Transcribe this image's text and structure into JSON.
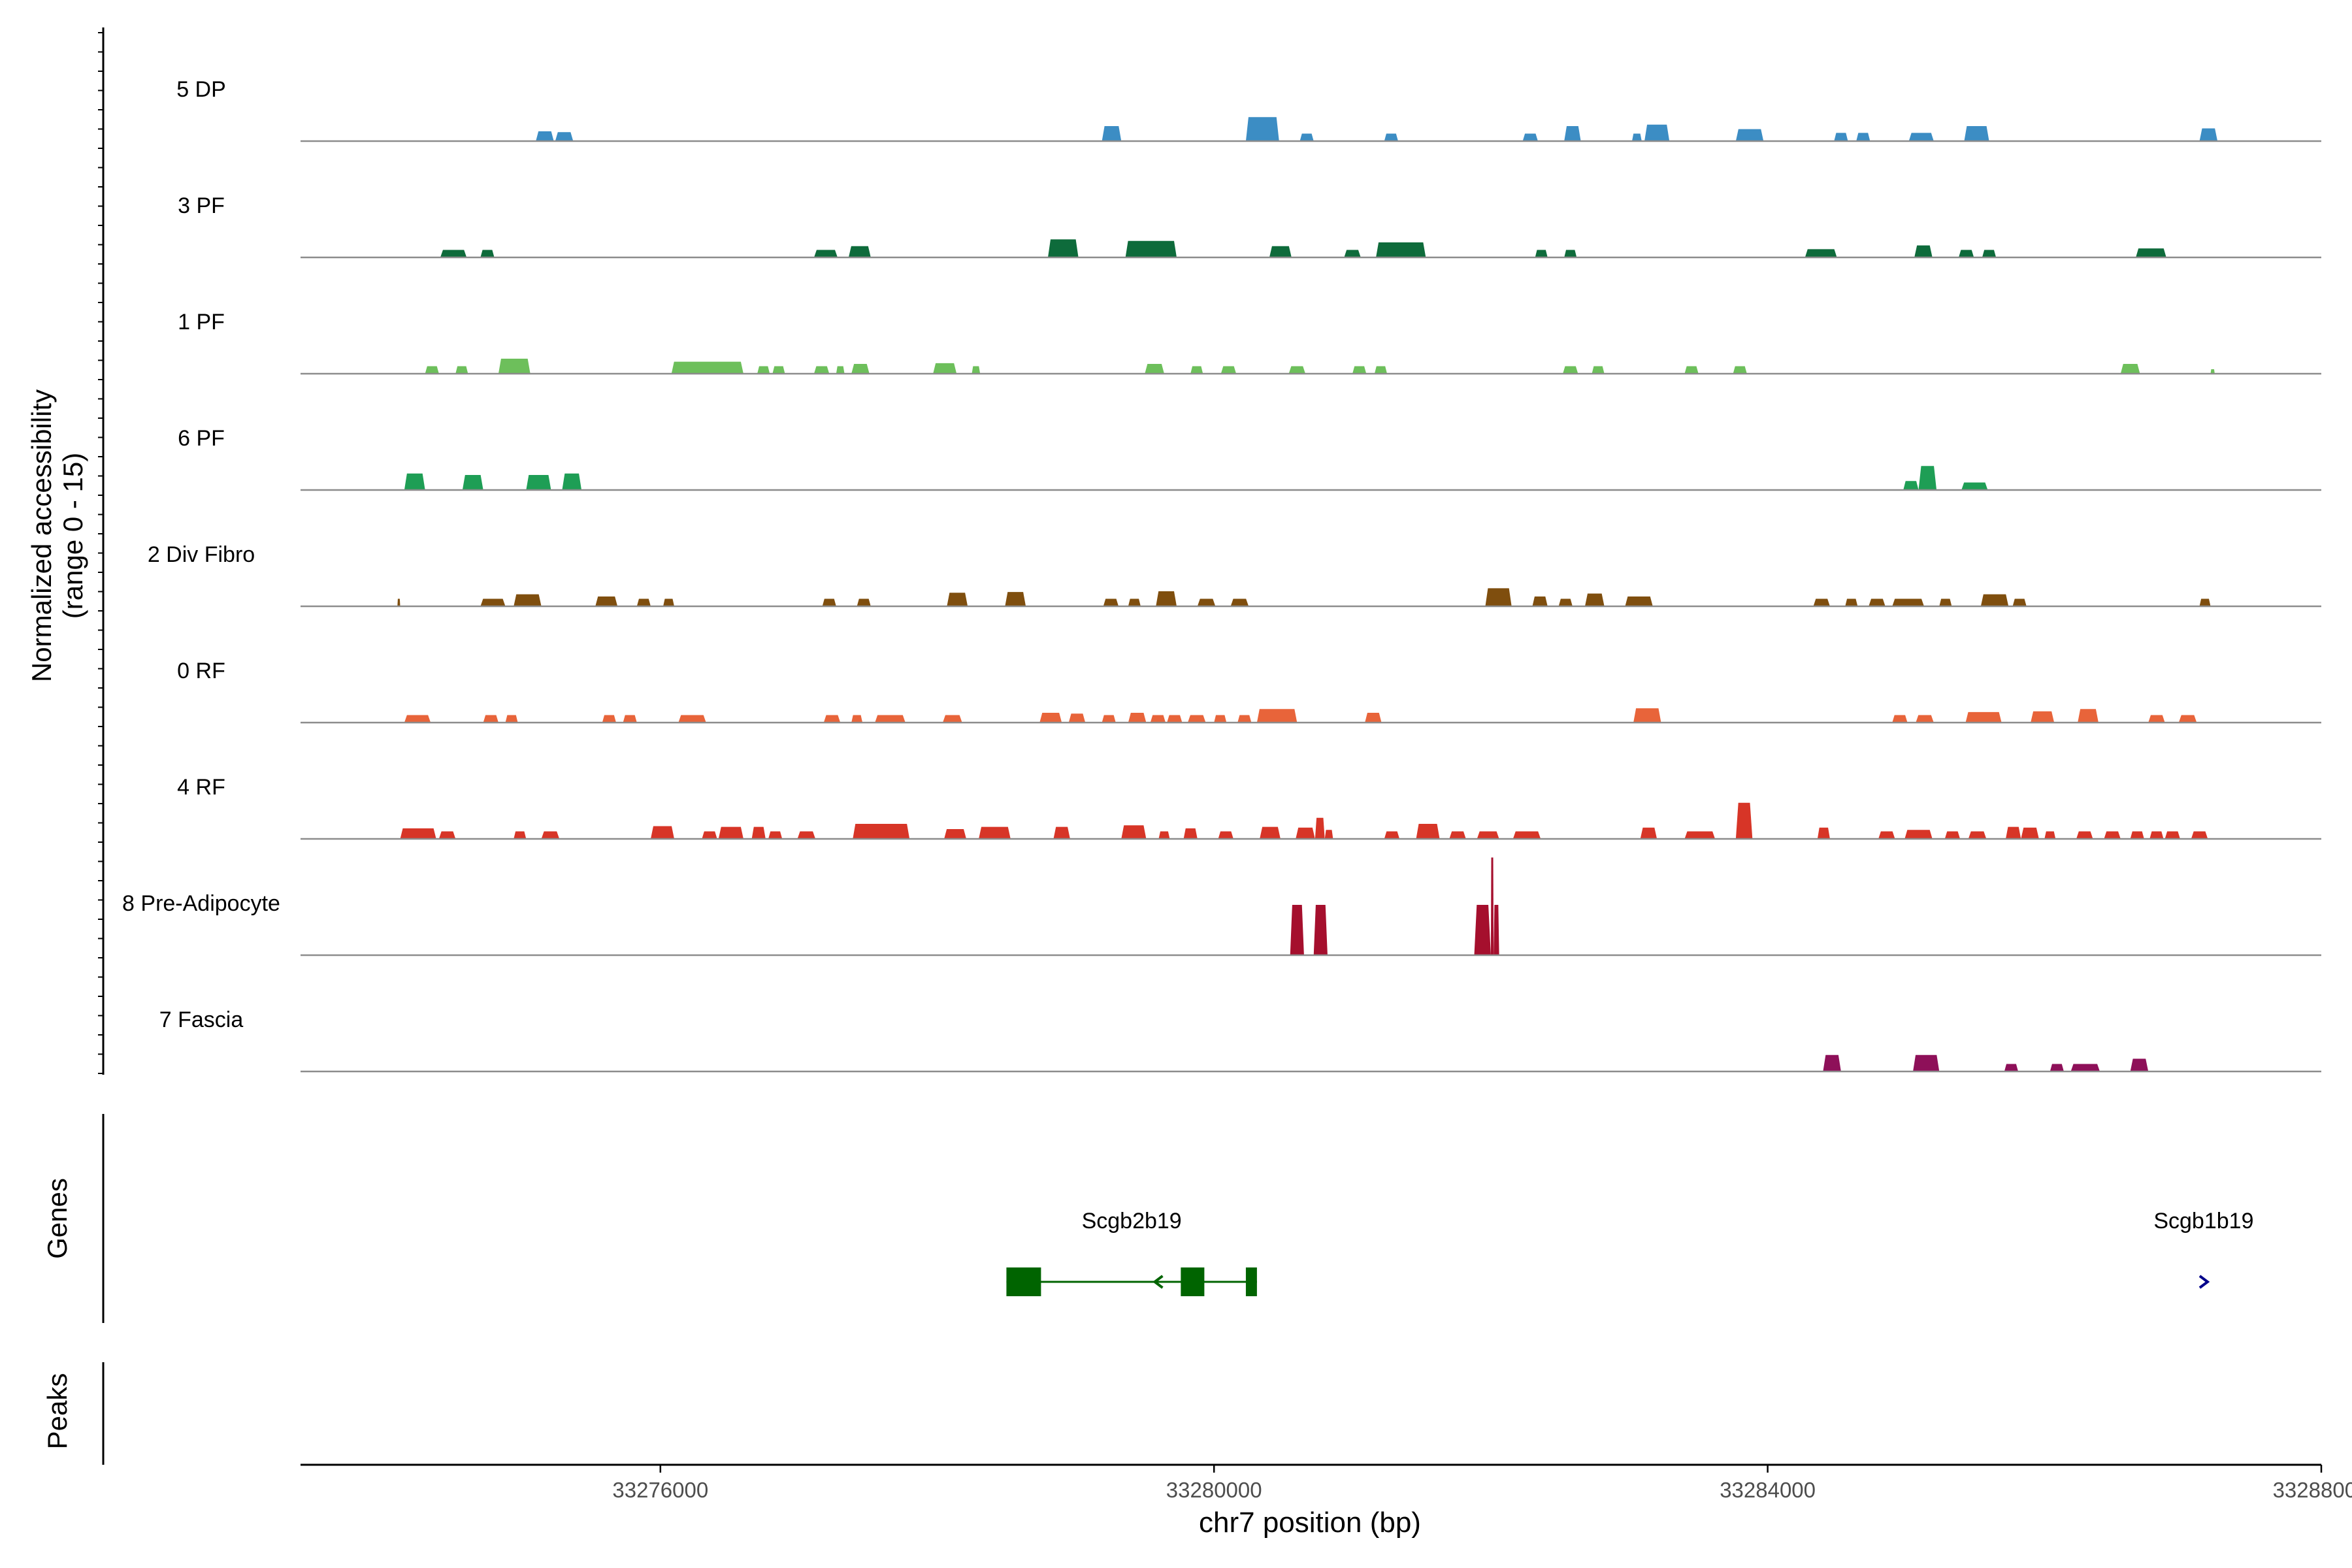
{
  "chart_data": {
    "type": "area",
    "title": "",
    "ylabel": "Normalized accessibility",
    "ylabel_range": "(range 0 - 15)",
    "xlabel": "chr7 position (bp)",
    "xlim": [
      33273400,
      33288000
    ],
    "ylim": [
      0,
      15
    ],
    "xticks": [
      33276000,
      33280000,
      33284000,
      33288000
    ],
    "xtick_labels": [
      "33276000",
      "33280000",
      "33284000",
      "33288000"
    ],
    "grid": false,
    "tracks": [
      {
        "name": "5 DP",
        "color": "#3C8DC4",
        "peaks": [
          [
            33275100,
            33275230,
            1.3
          ],
          [
            33275240,
            33275370,
            1.2
          ],
          [
            33279190,
            33279330,
            2.0
          ],
          [
            33280230,
            33280470,
            3.2
          ],
          [
            33280620,
            33280720,
            1.0
          ],
          [
            33281230,
            33281330,
            1.0
          ],
          [
            33282230,
            33282340,
            1.0
          ],
          [
            33282530,
            33282650,
            2.0
          ],
          [
            33283020,
            33283090,
            1.0
          ],
          [
            33283110,
            33283290,
            2.2
          ],
          [
            33283770,
            33283970,
            1.6
          ],
          [
            33284480,
            33284580,
            1.1
          ],
          [
            33284640,
            33284740,
            1.1
          ],
          [
            33285020,
            33285200,
            1.1
          ],
          [
            33285420,
            33285600,
            2.0
          ],
          [
            33287120,
            33287250,
            1.7
          ]
        ]
      },
      {
        "name": "3 PF",
        "color": "#0E6B3B",
        "peaks": [
          [
            33274410,
            33274600,
            1.0
          ],
          [
            33274700,
            33274800,
            1.0
          ],
          [
            33277110,
            33277280,
            1.0
          ],
          [
            33277360,
            33277520,
            1.5
          ],
          [
            33278800,
            33279020,
            2.4
          ],
          [
            33279360,
            33279730,
            2.2
          ],
          [
            33280400,
            33280560,
            1.5
          ],
          [
            33280940,
            33281060,
            1.0
          ],
          [
            33281170,
            33281530,
            2.0
          ],
          [
            33282320,
            33282410,
            1.0
          ],
          [
            33282530,
            33282620,
            1.0
          ],
          [
            33284270,
            33284500,
            1.1
          ],
          [
            33285060,
            33285190,
            1.6
          ],
          [
            33285380,
            33285490,
            1.0
          ],
          [
            33285550,
            33285650,
            1.0
          ],
          [
            33286660,
            33286880,
            1.2
          ]
        ]
      },
      {
        "name": "1 PF",
        "color": "#6DBF5B",
        "peaks": [
          [
            33274300,
            33274400,
            1.0
          ],
          [
            33274520,
            33274610,
            1.0
          ],
          [
            33274830,
            33275060,
            2.0
          ],
          [
            33276080,
            33276600,
            1.6
          ],
          [
            33276700,
            33276790,
            1.0
          ],
          [
            33276810,
            33276900,
            1.0
          ],
          [
            33277110,
            33277220,
            1.0
          ],
          [
            33277270,
            33277330,
            1.0
          ],
          [
            33277380,
            33277510,
            1.3
          ],
          [
            33277970,
            33278140,
            1.4
          ],
          [
            33278250,
            33278310,
            1.0
          ],
          [
            33279500,
            33279640,
            1.3
          ],
          [
            33279830,
            33279920,
            1.0
          ],
          [
            33280050,
            33280160,
            1.0
          ],
          [
            33280540,
            33280660,
            1.0
          ],
          [
            33281000,
            33281100,
            1.0
          ],
          [
            33281160,
            33281250,
            1.0
          ],
          [
            33282520,
            33282630,
            1.0
          ],
          [
            33282730,
            33282820,
            1.0
          ],
          [
            33283400,
            33283500,
            1.0
          ],
          [
            33283750,
            33283850,
            1.0
          ],
          [
            33286550,
            33286690,
            1.3
          ],
          [
            33287200,
            33287230,
            0.6
          ]
        ]
      },
      {
        "name": "6 PF",
        "color": "#1E9E55",
        "peaks": [
          [
            33274150,
            33274300,
            2.2
          ],
          [
            33274570,
            33274720,
            2.0
          ],
          [
            33275030,
            33275210,
            2.0
          ],
          [
            33275290,
            33275430,
            2.2
          ],
          [
            33284980,
            33285090,
            1.2
          ],
          [
            33285090,
            33285220,
            3.2
          ],
          [
            33285400,
            33285590,
            1.0
          ]
        ]
      },
      {
        "name": "2 Div Fibro",
        "color": "#7F4E0E",
        "peaks": [
          [
            33274100,
            33274120,
            1.0
          ],
          [
            33274700,
            33274880,
            1.0
          ],
          [
            33274940,
            33275140,
            1.6
          ],
          [
            33275530,
            33275690,
            1.3
          ],
          [
            33275830,
            33275930,
            1.0
          ],
          [
            33276020,
            33276100,
            1.0
          ],
          [
            33277170,
            33277270,
            1.0
          ],
          [
            33277420,
            33277520,
            1.0
          ],
          [
            33278070,
            33278220,
            1.8
          ],
          [
            33278490,
            33278640,
            1.9
          ],
          [
            33279200,
            33279310,
            1.0
          ],
          [
            33279380,
            33279470,
            1.0
          ],
          [
            33279580,
            33279730,
            2.0
          ],
          [
            33279880,
            33280010,
            1.0
          ],
          [
            33280120,
            33280250,
            1.0
          ],
          [
            33281960,
            33282150,
            2.4
          ],
          [
            33282300,
            33282410,
            1.3
          ],
          [
            33282490,
            33282590,
            1.0
          ],
          [
            33282680,
            33282820,
            1.7
          ],
          [
            33282970,
            33283170,
            1.3
          ],
          [
            33284330,
            33284450,
            1.0
          ],
          [
            33284560,
            33284650,
            1.0
          ],
          [
            33284730,
            33284850,
            1.0
          ],
          [
            33284900,
            33285130,
            1.0
          ],
          [
            33285240,
            33285330,
            1.0
          ],
          [
            33285540,
            33285740,
            1.6
          ],
          [
            33285770,
            33285870,
            1.0
          ],
          [
            33287120,
            33287200,
            1.0
          ]
        ]
      },
      {
        "name": "0 RF",
        "color": "#E8643A",
        "peaks": [
          [
            33274150,
            33274340,
            1.0
          ],
          [
            33274720,
            33274830,
            1.0
          ],
          [
            33274880,
            33274970,
            1.0
          ],
          [
            33275580,
            33275680,
            1.0
          ],
          [
            33275730,
            33275830,
            1.0
          ],
          [
            33276130,
            33276330,
            1.0
          ],
          [
            33277180,
            33277300,
            1.0
          ],
          [
            33277380,
            33277460,
            1.0
          ],
          [
            33277550,
            33277770,
            1.0
          ],
          [
            33278040,
            33278180,
            1.0
          ],
          [
            33278740,
            33278900,
            1.3
          ],
          [
            33278950,
            33279070,
            1.2
          ],
          [
            33279190,
            33279290,
            1.0
          ],
          [
            33279380,
            33279510,
            1.3
          ],
          [
            33279540,
            33279650,
            1.0
          ],
          [
            33279660,
            33279770,
            1.0
          ],
          [
            33279810,
            33279940,
            1.0
          ],
          [
            33280000,
            33280090,
            1.0
          ],
          [
            33280170,
            33280270,
            1.0
          ],
          [
            33280310,
            33280600,
            1.8
          ],
          [
            33281090,
            33281210,
            1.3
          ],
          [
            33283030,
            33283230,
            1.9
          ],
          [
            33284900,
            33285010,
            1.0
          ],
          [
            33285070,
            33285200,
            1.0
          ],
          [
            33285430,
            33285690,
            1.4
          ],
          [
            33285900,
            33286070,
            1.5
          ],
          [
            33286240,
            33286390,
            1.8
          ],
          [
            33286750,
            33286870,
            1.0
          ],
          [
            33286970,
            33287100,
            1.0
          ]
        ]
      },
      {
        "name": "4 RF",
        "color": "#D73527",
        "peaks": [
          [
            33274120,
            33274380,
            1.4
          ],
          [
            33274400,
            33274520,
            1.0
          ],
          [
            33274940,
            33275030,
            1.0
          ],
          [
            33275140,
            33275270,
            1.0
          ],
          [
            33275930,
            33276100,
            1.7
          ],
          [
            33276300,
            33276410,
            1.0
          ],
          [
            33276420,
            33276600,
            1.6
          ],
          [
            33276660,
            33276760,
            1.6
          ],
          [
            33276780,
            33276880,
            1.0
          ],
          [
            33276990,
            33277120,
            1.0
          ],
          [
            33277390,
            33277800,
            2.0
          ],
          [
            33278050,
            33278210,
            1.3
          ],
          [
            33278300,
            33278530,
            1.6
          ],
          [
            33278840,
            33278960,
            1.6
          ],
          [
            33279330,
            33279510,
            1.8
          ],
          [
            33279600,
            33279680,
            1.0
          ],
          [
            33279780,
            33279880,
            1.4
          ],
          [
            33280030,
            33280140,
            1.0
          ],
          [
            33280330,
            33280480,
            1.6
          ],
          [
            33280590,
            33280730,
            1.5
          ],
          [
            33280730,
            33280800,
            2.8
          ],
          [
            33280800,
            33280860,
            1.2
          ],
          [
            33281230,
            33281340,
            1.0
          ],
          [
            33281460,
            33281630,
            2.0
          ],
          [
            33281700,
            33281820,
            1.0
          ],
          [
            33281900,
            33282060,
            1.0
          ],
          [
            33282160,
            33282360,
            1.0
          ],
          [
            33283080,
            33283200,
            1.5
          ],
          [
            33283400,
            33283620,
            1.0
          ],
          [
            33283770,
            33283890,
            4.8
          ],
          [
            33284360,
            33284450,
            1.5
          ],
          [
            33284800,
            33284920,
            1.0
          ],
          [
            33284990,
            33285190,
            1.2
          ],
          [
            33285280,
            33285390,
            1.0
          ],
          [
            33285450,
            33285580,
            1.0
          ],
          [
            33285720,
            33285830,
            1.6
          ],
          [
            33285830,
            33285960,
            1.5
          ],
          [
            33286000,
            33286080,
            1.0
          ],
          [
            33286230,
            33286350,
            1.0
          ],
          [
            33286430,
            33286550,
            1.0
          ],
          [
            33286620,
            33286720,
            1.0
          ],
          [
            33286760,
            33286860,
            1.0
          ],
          [
            33286870,
            33286980,
            1.0
          ],
          [
            33287060,
            33287180,
            1.0
          ]
        ]
      },
      {
        "name": "8 Pre-Adipocyte",
        "color": "#A50F2D",
        "peaks": [
          [
            33280550,
            33280650,
            6.7
          ],
          [
            33280720,
            33280820,
            6.7
          ],
          [
            33281880,
            33282000,
            6.7
          ],
          [
            33282000,
            33282020,
            13.0
          ],
          [
            33282020,
            33282060,
            6.7
          ]
        ]
      },
      {
        "name": "7 Fascia",
        "color": "#8E1059",
        "peaks": [
          [
            33284400,
            33284530,
            2.2
          ],
          [
            33285050,
            33285240,
            2.2
          ],
          [
            33285710,
            33285810,
            1.0
          ],
          [
            33286040,
            33286140,
            1.0
          ],
          [
            33286190,
            33286400,
            1.0
          ],
          [
            33286620,
            33286750,
            1.7
          ]
        ]
      }
    ],
    "genes_label": "Genes",
    "peaks_label": "Peaks",
    "genes": [
      {
        "name": "Scgb2b19",
        "start": 33278500,
        "end": 33280310,
        "strand": "-",
        "color": "#006400",
        "exons": [
          [
            33278500,
            33278750
          ],
          [
            33279760,
            33279930
          ],
          [
            33280230,
            33280310
          ]
        ]
      },
      {
        "name": "Scgb1b19",
        "start": 33287000,
        "end": 33287300,
        "strand": "+",
        "color": "#00008B",
        "exons": []
      }
    ]
  }
}
